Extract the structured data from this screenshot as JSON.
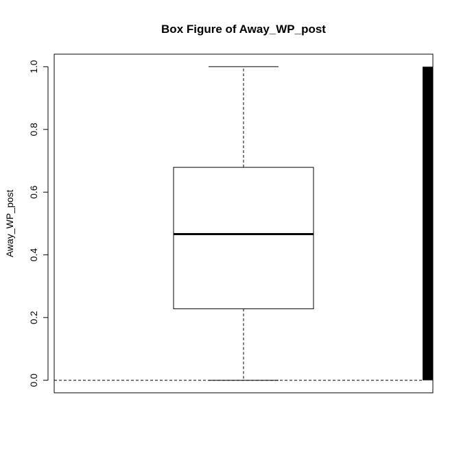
{
  "chart_data": {
    "type": "box",
    "title": "Box Figure of Away_WP_post",
    "ylabel": "Away_WP_post",
    "xlabel": "",
    "ylim": [
      -0.04,
      1.04
    ],
    "y_ticks": [
      "0.0",
      "0.2",
      "0.4",
      "0.6",
      "0.8",
      "1.0"
    ],
    "y_tick_values": [
      0.0,
      0.2,
      0.4,
      0.6,
      0.8,
      1.0
    ],
    "box": {
      "min": 0.0,
      "q1": 0.228,
      "median": 0.466,
      "q3": 0.679,
      "max": 1.0
    },
    "reference_line": 0.0,
    "rug_bar": {
      "from": 0.0,
      "to": 1.0
    },
    "colors": {
      "box_fill": "#ffffff",
      "stroke": "#000000",
      "rug": "#000000"
    }
  }
}
